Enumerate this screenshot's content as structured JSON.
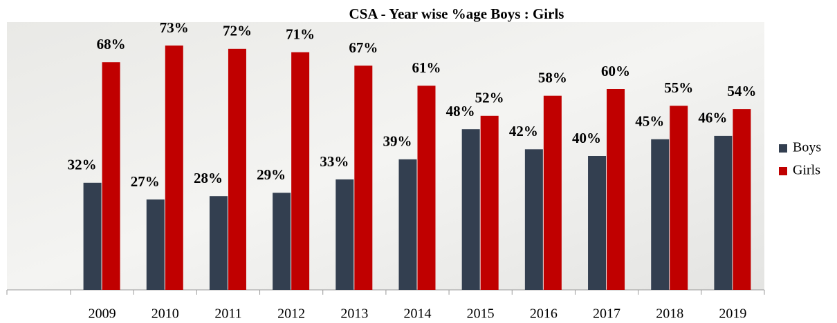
{
  "chart_data": {
    "type": "bar",
    "title": "CSA - Year wise %age Boys : Girls",
    "categories": [
      "2009",
      "2010",
      "2011",
      "2012",
      "2013",
      "2014",
      "2015",
      "2016",
      "2017",
      "2018",
      "2019"
    ],
    "series": [
      {
        "name": "Boys",
        "color": "#333f50",
        "values": [
          32,
          27,
          28,
          29,
          33,
          39,
          48,
          42,
          40,
          45,
          46
        ],
        "value_labels": [
          "32%",
          "27%",
          "28%",
          "29%",
          "33%",
          "39%",
          "48%",
          "42%",
          "40%",
          "45%",
          "46%"
        ]
      },
      {
        "name": "Girls",
        "color": "#c00000",
        "values": [
          68,
          73,
          72,
          71,
          67,
          61,
          52,
          58,
          60,
          55,
          54
        ],
        "value_labels": [
          "68%",
          "73%",
          "72%",
          "71%",
          "67%",
          "61%",
          "52%",
          "58%",
          "60%",
          "55%",
          "54%"
        ]
      }
    ],
    "legend": "right"
  }
}
